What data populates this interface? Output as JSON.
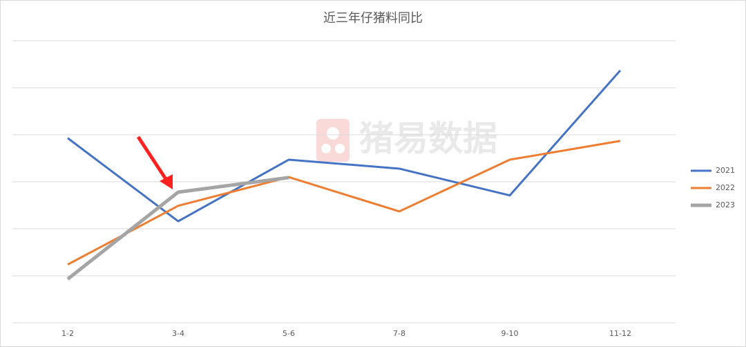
{
  "chart_data": {
    "type": "line",
    "title": "近三年仔猪料同比",
    "watermark": "猪易数据",
    "categories": [
      "1-2",
      "3-4",
      "5-6",
      "7-8",
      "9-10",
      "11-12"
    ],
    "series": [
      {
        "name": "2021",
        "color": "#4472c4",
        "values": [
          3.93,
          2.16,
          3.47,
          3.28,
          2.71,
          5.37
        ]
      },
      {
        "name": "2022",
        "color": "#ed7d31",
        "values": [
          1.24,
          2.49,
          3.1,
          2.37,
          3.47,
          3.87
        ]
      },
      {
        "name": "2023",
        "color": "#a5a5a5",
        "values": [
          0.93,
          2.78,
          3.09,
          null,
          null,
          null
        ]
      }
    ],
    "ylim": [
      0,
      6
    ],
    "yticks": [
      0,
      1,
      2,
      3,
      4,
      5,
      6
    ],
    "grid": true,
    "legend": "right"
  }
}
